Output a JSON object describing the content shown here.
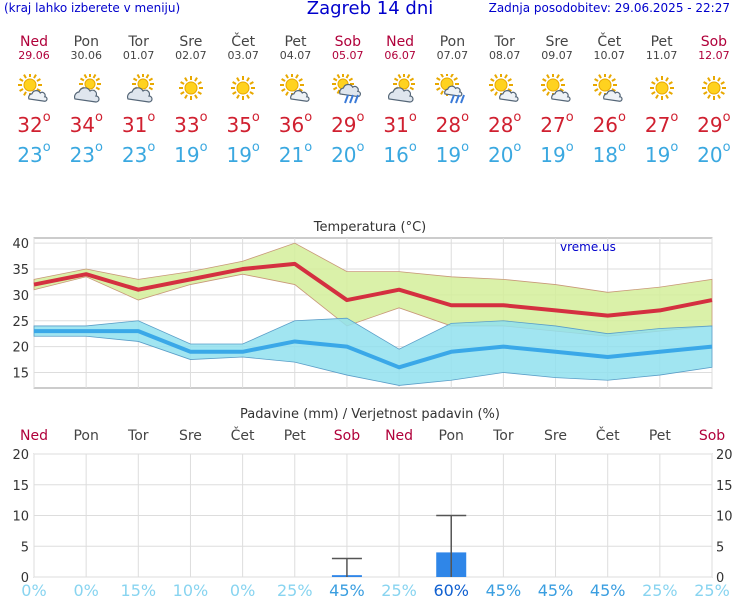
{
  "header": {
    "menu_hint": "(kraj lahko izberete v meniju)",
    "title": "Zagreb 14 dni",
    "updated": "Zadnja posodobitev: 29.06.2025 - 22:27"
  },
  "days": [
    {
      "name": "Ned",
      "date": "29.06",
      "tmax": "32",
      "tmin": "23",
      "weekend": true,
      "icon": "sun-cloud-icon"
    },
    {
      "name": "Pon",
      "date": "30.06",
      "tmax": "34",
      "tmin": "23",
      "weekend": false,
      "icon": "cloud-sun-icon"
    },
    {
      "name": "Tor",
      "date": "01.07",
      "tmax": "31",
      "tmin": "23",
      "weekend": false,
      "icon": "cloud-sun-icon"
    },
    {
      "name": "Sre",
      "date": "02.07",
      "tmax": "33",
      "tmin": "19",
      "weekend": false,
      "icon": "sun-icon"
    },
    {
      "name": "Čet",
      "date": "03.07",
      "tmax": "35",
      "tmin": "19",
      "weekend": false,
      "icon": "sun-icon"
    },
    {
      "name": "Pet",
      "date": "04.07",
      "tmax": "36",
      "tmin": "21",
      "weekend": false,
      "icon": "sun-cloud-icon"
    },
    {
      "name": "Sob",
      "date": "05.07",
      "tmax": "29",
      "tmin": "20",
      "weekend": true,
      "icon": "cloud-rain-icon"
    },
    {
      "name": "Ned",
      "date": "06.07",
      "tmax": "31",
      "tmin": "16",
      "weekend": true,
      "icon": "cloud-sun-icon"
    },
    {
      "name": "Pon",
      "date": "07.07",
      "tmax": "28",
      "tmin": "19",
      "weekend": false,
      "icon": "sun-rain-icon"
    },
    {
      "name": "Tor",
      "date": "08.07",
      "tmax": "28",
      "tmin": "20",
      "weekend": false,
      "icon": "sun-cloud-icon"
    },
    {
      "name": "Sre",
      "date": "09.07",
      "tmax": "27",
      "tmin": "19",
      "weekend": false,
      "icon": "sun-cloud-icon"
    },
    {
      "name": "Čet",
      "date": "10.07",
      "tmax": "26",
      "tmin": "18",
      "weekend": false,
      "icon": "sun-cloud-icon"
    },
    {
      "name": "Pet",
      "date": "11.07",
      "tmax": "27",
      "tmin": "19",
      "weekend": false,
      "icon": "sun-icon"
    },
    {
      "name": "Sob",
      "date": "12.07",
      "tmax": "29",
      "tmin": "20",
      "weekend": true,
      "icon": "sun-icon"
    }
  ],
  "degree_symbol": "o",
  "chart_data": [
    {
      "type": "line",
      "title": "Temperatura (°C)",
      "watermark": "vreme.us",
      "ylim": [
        12,
        41
      ],
      "yticks": [
        15,
        20,
        25,
        30,
        35,
        40
      ],
      "grid": true,
      "categories": [
        "29.06",
        "30.06",
        "01.07",
        "02.07",
        "03.07",
        "04.07",
        "05.07",
        "06.07",
        "07.07",
        "08.07",
        "09.07",
        "10.07",
        "11.07",
        "12.07"
      ],
      "series": [
        {
          "values": [
            32,
            34,
            31,
            33,
            35,
            36,
            29,
            31,
            28,
            28,
            27,
            26,
            27,
            29
          ],
          "color": "#d43040"
        },
        {
          "values": [
            23,
            23,
            23,
            19,
            19,
            21,
            20,
            16,
            19,
            20,
            19,
            18,
            19,
            20
          ],
          "color": "#3aa8e8"
        }
      ],
      "bands": [
        {
          "upper": [
            33,
            35,
            33,
            34.5,
            36.5,
            40,
            34.5,
            34.5,
            33.5,
            33,
            32,
            30.5,
            31.5,
            33
          ],
          "lower": [
            31,
            33.5,
            29,
            32,
            34,
            32,
            24,
            27.5,
            24,
            24,
            23,
            22,
            23,
            24
          ],
          "color": "#d4ee9a"
        },
        {
          "upper": [
            24,
            24,
            25,
            20.5,
            20.5,
            25,
            25.5,
            19.5,
            24.5,
            25,
            24,
            22.5,
            23.5,
            24
          ],
          "lower": [
            22,
            22,
            21,
            17.5,
            18,
            17,
            14.5,
            12.5,
            13.5,
            15,
            14,
            13.5,
            14.5,
            16
          ],
          "color": "#90e0ee"
        }
      ]
    },
    {
      "type": "bar",
      "title": "Padavine (mm) / Verjetnost padavin (%)",
      "ylim": [
        0,
        20
      ],
      "yticks": [
        0,
        5,
        10,
        15,
        20
      ],
      "grid": true,
      "categories": [
        "Ned",
        "Pon",
        "Tor",
        "Sre",
        "Čet",
        "Pet",
        "Sob",
        "Ned",
        "Pon",
        "Tor",
        "Sre",
        "Čet",
        "Pet",
        "Sob"
      ],
      "values": [
        0,
        0,
        0,
        0,
        0,
        0,
        0.3,
        0,
        4,
        0,
        0,
        0,
        0,
        0
      ],
      "error_high": [
        null,
        null,
        null,
        null,
        null,
        null,
        3,
        null,
        10,
        null,
        null,
        null,
        null,
        null
      ],
      "probabilities": [
        "0%",
        "0%",
        "15%",
        "10%",
        "0%",
        "25%",
        "45%",
        "25%",
        "60%",
        "45%",
        "45%",
        "45%",
        "25%",
        "25%"
      ]
    }
  ]
}
